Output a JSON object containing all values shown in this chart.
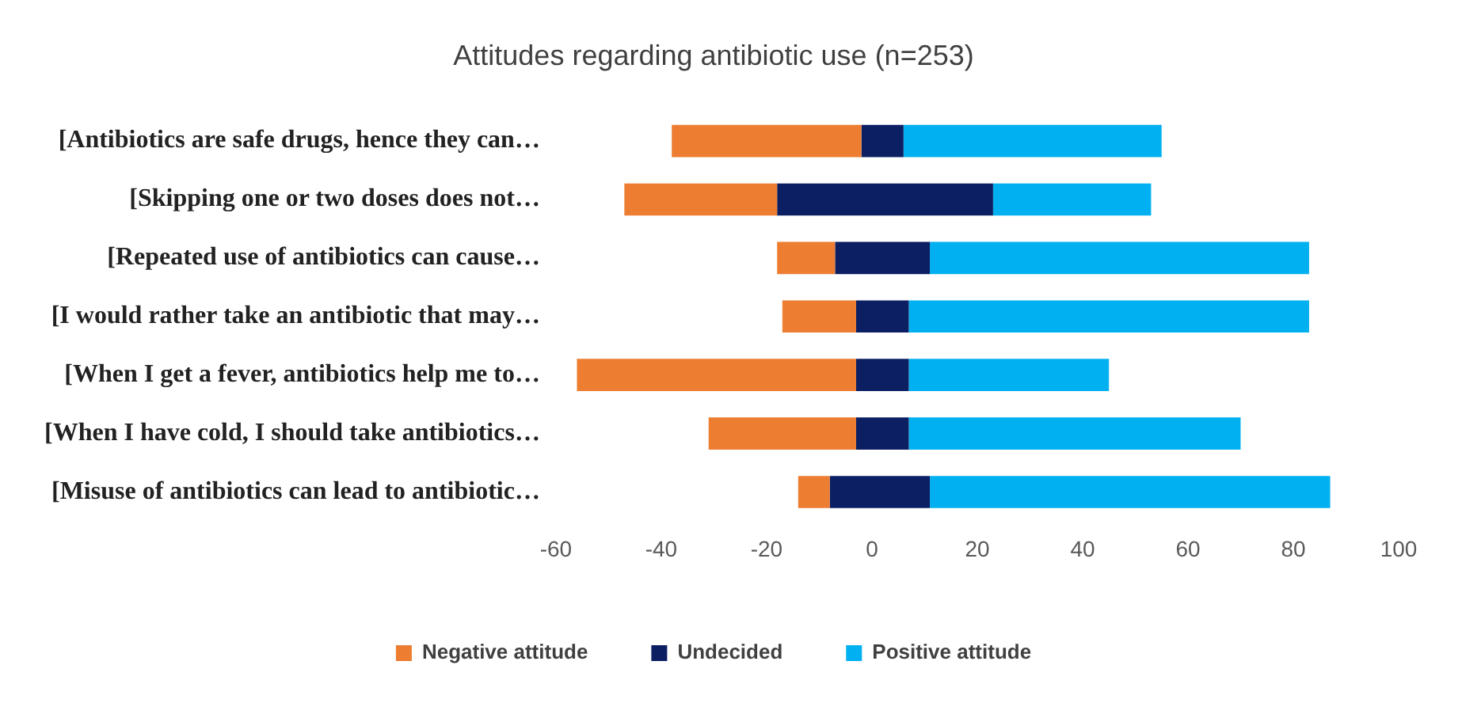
{
  "chart_data": {
    "type": "bar",
    "orientation": "horizontal",
    "title": "Attitudes regarding antibiotic use (n=253)",
    "categories": [
      "[Antibiotics are safe drugs, hence they can…",
      "[Skipping one or two doses does not…",
      "[Repeated use of antibiotics can cause…",
      "[I would rather take an antibiotic that may…",
      "[When I get a fever, antibiotics help me to…",
      "[When I have cold, I should take antibiotics…",
      "[Misuse of antibiotics can lead to antibiotic…"
    ],
    "series": [
      {
        "name": "Negative attitude",
        "color": "#ed7d31",
        "base": [
          -38,
          -47,
          -18,
          -17,
          -56,
          -31,
          -14
        ],
        "values": [
          36,
          29,
          11,
          14,
          53,
          28,
          6
        ]
      },
      {
        "name": "Undecided",
        "color": "#0c1f63",
        "base": [
          -2,
          -18,
          -7,
          -3,
          -3,
          -3,
          -8
        ],
        "values": [
          8,
          41,
          18,
          10,
          10,
          10,
          19
        ]
      },
      {
        "name": "Positive attitude",
        "color": "#00b0f0",
        "base": [
          6,
          23,
          11,
          7,
          7,
          7,
          11
        ],
        "values": [
          49,
          30,
          72,
          76,
          38,
          63,
          76
        ]
      }
    ],
    "xlim": [
      -60,
      100
    ],
    "xticks": [
      -60,
      -40,
      -20,
      0,
      20,
      40,
      60,
      80,
      100
    ],
    "grid": false,
    "legend": "bottom"
  }
}
